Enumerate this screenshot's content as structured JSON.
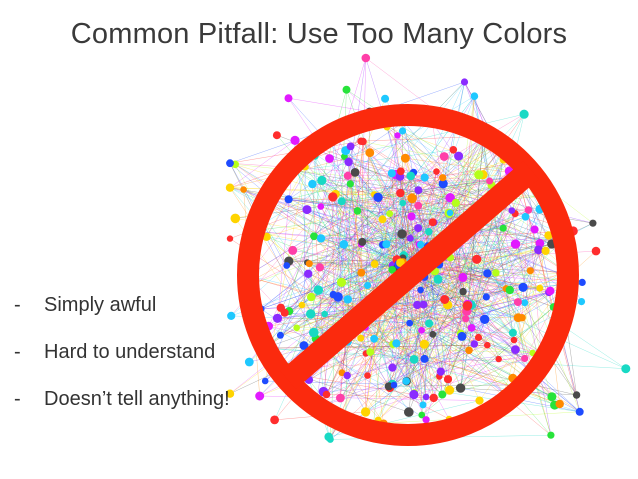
{
  "slide": {
    "title": "Common Pitfall: Use Too Many Colors",
    "bullets": [
      {
        "marker": "-",
        "text": "Simply awful"
      },
      {
        "marker": "-",
        "text": "Hard to understand"
      },
      {
        "marker": "-",
        "text": "Doesn’t tell anything!"
      }
    ]
  },
  "illustration": {
    "subject": "dense-network-graph",
    "overlay": "prohibition-sign",
    "colors": {
      "prohibition": "#fb2a0d",
      "nodes": [
        "#ff2d2d",
        "#ff8a00",
        "#ffd400",
        "#b5ff1a",
        "#27e33a",
        "#18d9c4",
        "#1ec8ff",
        "#1e4bff",
        "#8a2bff",
        "#e11aff",
        "#ff3fa8",
        "#4a4a4a"
      ]
    }
  }
}
